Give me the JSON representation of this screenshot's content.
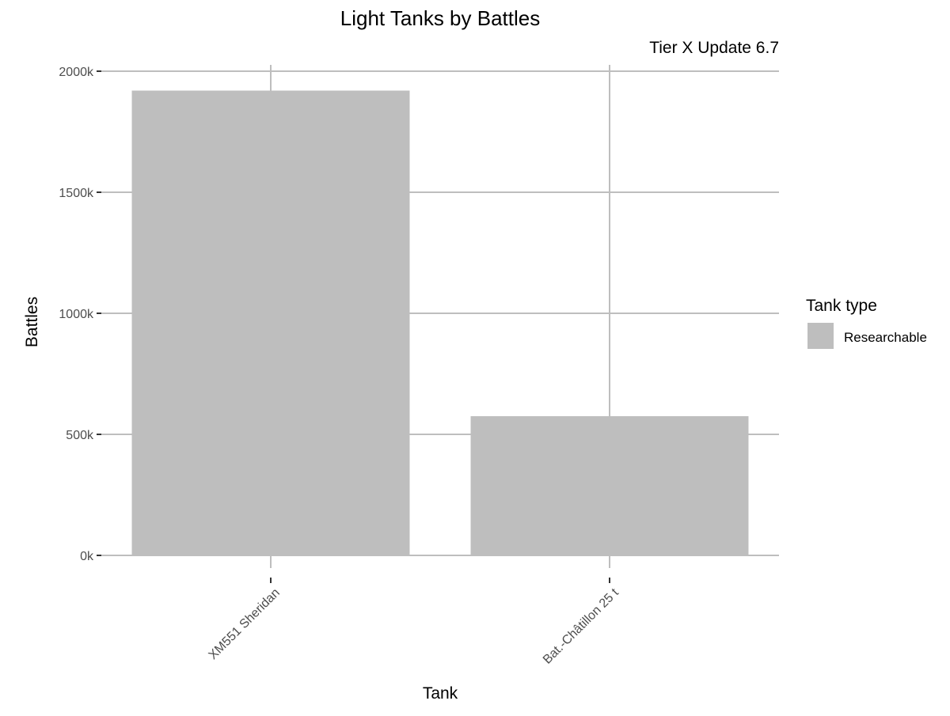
{
  "chart_data": {
    "type": "bar",
    "title": "Light Tanks by Battles",
    "subtitle": "Tier X Update 6.7",
    "xlabel": "Tank",
    "ylabel": "Battles",
    "categories": [
      "XM551 Sheridan",
      "Bat.-Châtillon 25 t"
    ],
    "series": [
      {
        "name": "Researchable",
        "values": [
          1920000,
          575000
        ]
      }
    ],
    "ylim": [
      0,
      2000000
    ],
    "yticks": [
      0,
      500000,
      1000000,
      1500000,
      2000000
    ],
    "ytick_labels": [
      "0k",
      "500k",
      "1000k",
      "1500k",
      "2000k"
    ],
    "grid": true,
    "legend": {
      "title": "Tank type",
      "position": "right",
      "entries": [
        "Researchable"
      ]
    },
    "colors": {
      "bar": "#bebebe",
      "grid": "#bebebe",
      "axis_text": "#4d4d4d"
    }
  }
}
